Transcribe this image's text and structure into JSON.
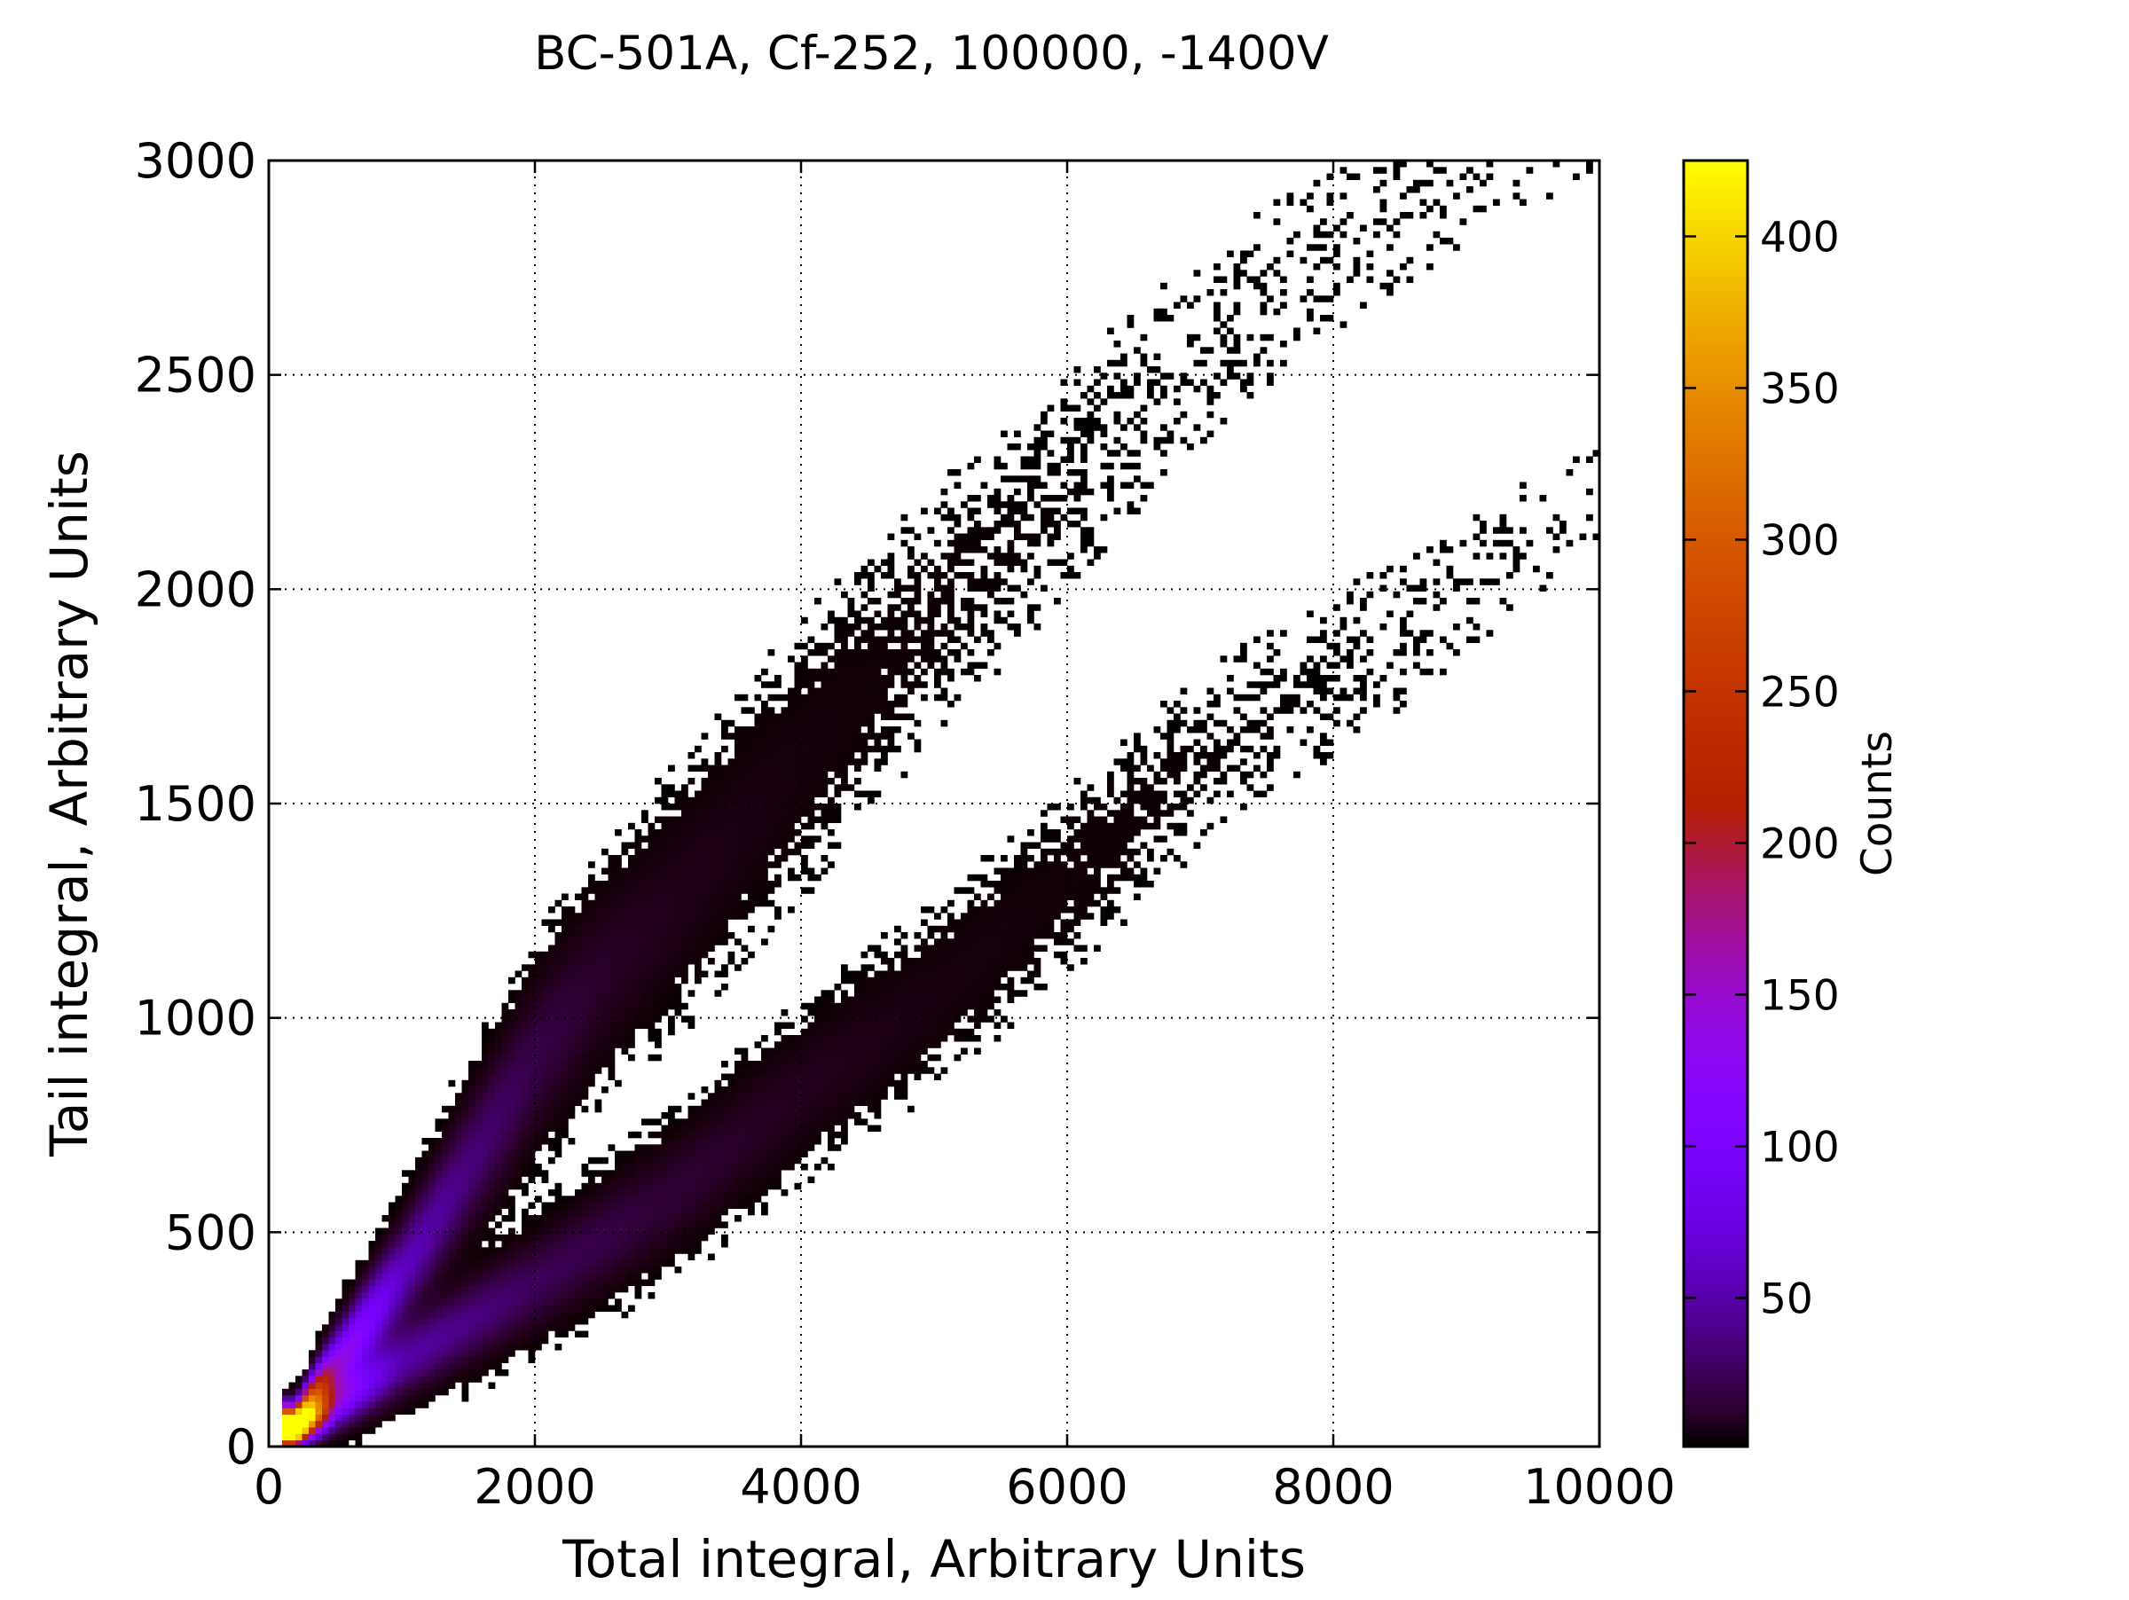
{
  "chart_data": {
    "type": "heatmap",
    "title": "BC-501A, Cf-252, 100000, -1400V",
    "xlabel": "Total integral, Arbitrary Units",
    "ylabel": "Tail integral, Arbitrary Units",
    "xlim": [
      0,
      10000
    ],
    "ylim": [
      0,
      3000
    ],
    "x_ticks": [
      0,
      2000,
      4000,
      6000,
      8000,
      10000
    ],
    "x_tick_labels": [
      "0",
      "2000",
      "4000",
      "6000",
      "8000",
      "10000"
    ],
    "y_ticks": [
      0,
      500,
      1000,
      1500,
      2000,
      2500,
      3000
    ],
    "y_tick_labels": [
      "0",
      "500",
      "1000",
      "1500",
      "2000",
      "2500",
      "3000"
    ],
    "grid": true,
    "colormap": "gnuplot",
    "colorbar": {
      "label": "Counts",
      "range": [
        1,
        425
      ],
      "ticks": [
        50,
        100,
        150,
        200,
        250,
        300,
        350,
        400
      ],
      "tick_labels": [
        "50",
        "100",
        "150",
        "200",
        "250",
        "300",
        "350",
        "400"
      ]
    },
    "bands": [
      {
        "description_key": "upper-band",
        "path": [
          [
            200,
            60
          ],
          [
            500,
            180
          ],
          [
            1000,
            400
          ],
          [
            1500,
            650
          ],
          [
            2000,
            900
          ],
          [
            2500,
            1100
          ],
          [
            3000,
            1250
          ],
          [
            4000,
            1600
          ],
          [
            5000,
            1950
          ],
          [
            6000,
            2250
          ],
          [
            7000,
            2550
          ],
          [
            8000,
            2800
          ],
          [
            9000,
            2950
          ],
          [
            9800,
            3050
          ]
        ],
        "width_y": [
          25,
          50,
          70,
          90,
          110,
          120,
          130,
          150,
          160,
          170,
          180,
          190,
          190,
          190
        ],
        "density": [
          425,
          150,
          60,
          35,
          20,
          12,
          8,
          4,
          2,
          1.2,
          0.8,
          0.6,
          0.5,
          0.4
        ]
      },
      {
        "description_key": "lower-band",
        "path": [
          [
            200,
            30
          ],
          [
            500,
            100
          ],
          [
            1000,
            200
          ],
          [
            2000,
            380
          ],
          [
            3000,
            580
          ],
          [
            4000,
            830
          ],
          [
            5000,
            1050
          ],
          [
            6000,
            1320
          ],
          [
            7000,
            1600
          ],
          [
            8000,
            1800
          ],
          [
            9000,
            2000
          ],
          [
            10000,
            2250
          ]
        ],
        "width_y": [
          20,
          35,
          50,
          65,
          80,
          90,
          100,
          110,
          120,
          130,
          140,
          150
        ],
        "density": [
          400,
          120,
          50,
          25,
          15,
          9,
          5,
          3,
          1.6,
          1.0,
          0.7,
          0.5
        ]
      }
    ]
  }
}
